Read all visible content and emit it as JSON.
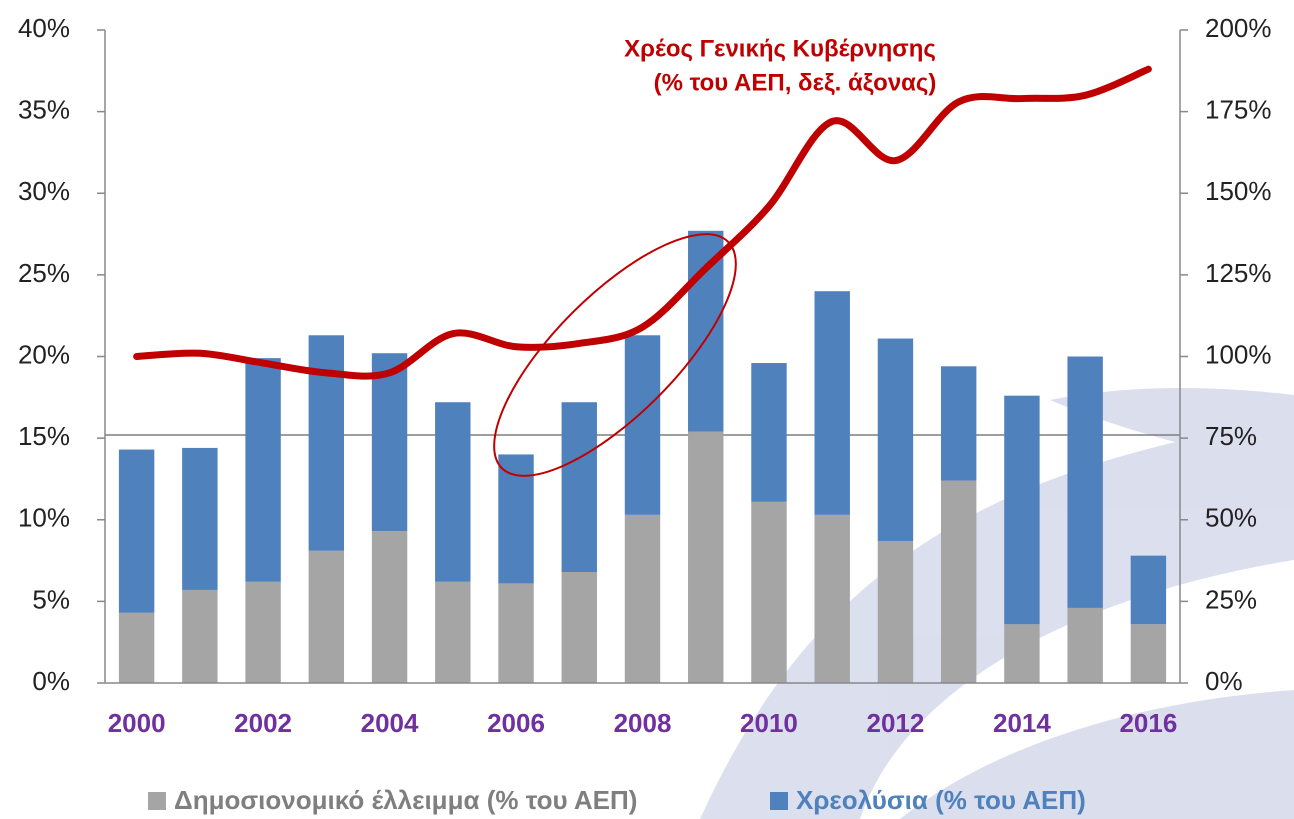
{
  "chart_data": {
    "type": "bar-line",
    "categories": [
      "2000",
      null,
      "2002",
      null,
      "2004",
      null,
      "2006",
      null,
      "2008",
      null,
      "2010",
      null,
      "2012",
      null,
      "2014",
      null,
      "2016"
    ],
    "series": [
      {
        "name": "Δημοσιονομικό έλλειμμα (% του ΑΕΠ)",
        "color": "#a5a5a5",
        "type": "bar",
        "values": [
          4.3,
          5.7,
          6.2,
          8.1,
          9.3,
          6.2,
          6.1,
          6.8,
          10.3,
          15.4,
          11.1,
          10.3,
          8.7,
          12.4,
          3.6,
          4.6,
          3.6
        ]
      },
      {
        "name": "Χρεολύσια (% του ΑΕΠ)",
        "color": "#4f81bd",
        "type": "bar",
        "values": [
          10.0,
          8.7,
          13.7,
          13.2,
          10.9,
          11.0,
          7.9,
          10.4,
          11.0,
          12.3,
          8.5,
          13.7,
          12.4,
          7.0,
          14.0,
          15.4,
          4.2
        ]
      },
      {
        "name": "Χρέος Γενικής Κυβέρνησης",
        "note": "(% του ΑΕΠ, δεξ. άξονας)",
        "color": "#c00000",
        "type": "line",
        "axis": "y2",
        "values": [
          100,
          101,
          98,
          95,
          95,
          107,
          103,
          104,
          109,
          127,
          146,
          172,
          160,
          178,
          179,
          180,
          188
        ]
      }
    ],
    "ylim": [
      0,
      40
    ],
    "yticks": [
      {
        "value": 0,
        "label": "0%"
      },
      {
        "value": 5,
        "label": "5%"
      },
      {
        "value": 10,
        "label": "10%"
      },
      {
        "value": 15,
        "label": "15%"
      },
      {
        "value": 20,
        "label": "20%"
      },
      {
        "value": 25,
        "label": "25%"
      },
      {
        "value": 30,
        "label": "30%"
      },
      {
        "value": 35,
        "label": "35%"
      },
      {
        "value": 40,
        "label": "40%"
      }
    ],
    "y2lim": [
      0,
      200
    ],
    "y2ticks": [
      {
        "value": 0,
        "label": "0%"
      },
      {
        "value": 25,
        "label": "25%"
      },
      {
        "value": 50,
        "label": "50%"
      },
      {
        "value": 75,
        "label": "75%"
      },
      {
        "value": 100,
        "label": "100%"
      },
      {
        "value": 125,
        "label": "125%"
      },
      {
        "value": 150,
        "label": "150%"
      },
      {
        "value": 175,
        "label": "175%"
      },
      {
        "value": 200,
        "label": "200%"
      }
    ],
    "legend": "bottom"
  }
}
